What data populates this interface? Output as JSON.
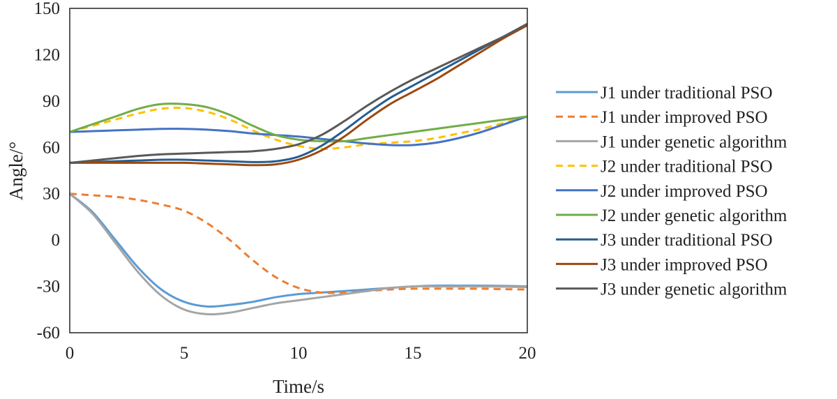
{
  "chart_data": {
    "type": "line",
    "title": "",
    "xlabel": "Time/s",
    "ylabel": "Angle/°",
    "xlim": [
      0,
      20
    ],
    "ylim": [
      -60,
      150
    ],
    "xticks": [
      0,
      5,
      10,
      15,
      20
    ],
    "yticks": [
      -60,
      -30,
      0,
      30,
      60,
      90,
      120,
      150
    ],
    "xtick_labels": [
      "0",
      "5",
      "10",
      "15",
      "20"
    ],
    "ytick_labels": [
      "-60",
      "-30",
      "0",
      "30",
      "60",
      "90",
      "120",
      "150"
    ],
    "grid": false,
    "legend_position": "right",
    "series": [
      {
        "name": "J1 under traditional PSO",
        "color": "#5b9bd5",
        "dash": "solid",
        "x": [
          0,
          1,
          2,
          3,
          4,
          5,
          6,
          7,
          8,
          9,
          10,
          11,
          12,
          13,
          14,
          15,
          16,
          17,
          18,
          19,
          20
        ],
        "y": [
          30,
          18,
          0,
          -18,
          -32,
          -40,
          -43,
          -42,
          -40,
          -37,
          -35,
          -34,
          -33,
          -32,
          -31,
          -30,
          -29.5,
          -29.5,
          -29.5,
          -29.7,
          -30
        ]
      },
      {
        "name": "J1 under improved PSO",
        "color": "#ed7d31",
        "dash": "dashed",
        "x": [
          0,
          1,
          2,
          3,
          4,
          5,
          6,
          7,
          8,
          9,
          10,
          11,
          12,
          13,
          14,
          15,
          16,
          17,
          18,
          19,
          20
        ],
        "y": [
          30,
          29,
          28,
          26,
          23,
          19,
          11,
          0,
          -13,
          -24,
          -31,
          -34,
          -34,
          -33,
          -32,
          -31.5,
          -31.5,
          -31.5,
          -31.5,
          -31.8,
          -32
        ]
      },
      {
        "name": "J1 under genetic algorithm",
        "color": "#a5a5a5",
        "dash": "solid",
        "x": [
          0,
          1,
          2,
          3,
          4,
          5,
          6,
          7,
          8,
          9,
          10,
          11,
          12,
          13,
          14,
          15,
          16,
          17,
          18,
          19,
          20
        ],
        "y": [
          30,
          17,
          -2,
          -21,
          -36,
          -45,
          -48,
          -47,
          -44,
          -41,
          -39,
          -37,
          -35,
          -33,
          -31,
          -30,
          -30,
          -30,
          -30,
          -30.2,
          -30.5
        ]
      },
      {
        "name": "J2 under traditional PSO",
        "color": "#ffc000",
        "dash": "dashed",
        "x": [
          0,
          1,
          2,
          3,
          4,
          5,
          6,
          7,
          8,
          9,
          10,
          11,
          12,
          13,
          14,
          15,
          16,
          17,
          18,
          19,
          20
        ],
        "y": [
          70,
          74,
          78,
          82,
          85,
          85.5,
          83,
          78,
          71,
          65,
          61,
          59,
          60,
          62,
          63,
          64,
          66,
          69,
          72,
          76,
          80
        ]
      },
      {
        "name": "J2 under improved PSO",
        "color": "#4472c4",
        "dash": "solid",
        "x": [
          0,
          1,
          2,
          3,
          4,
          5,
          6,
          7,
          8,
          9,
          10,
          11,
          12,
          13,
          14,
          15,
          16,
          17,
          18,
          19,
          20
        ],
        "y": [
          70,
          70.5,
          71,
          71.5,
          72,
          72,
          71.5,
          70.5,
          69,
          68,
          67,
          65.5,
          64,
          62.5,
          61.5,
          61.5,
          63,
          66,
          70,
          75,
          80
        ]
      },
      {
        "name": "J2 under genetic algorithm",
        "color": "#70ad47",
        "dash": "solid",
        "x": [
          0,
          1,
          2,
          3,
          4,
          5,
          6,
          7,
          8,
          9,
          10,
          11,
          12,
          13,
          14,
          15,
          16,
          17,
          18,
          19,
          20
        ],
        "y": [
          70,
          75,
          80,
          85,
          88,
          88,
          86,
          81,
          74,
          68,
          65,
          64,
          64,
          66,
          68,
          70,
          72,
          74,
          76,
          78,
          80
        ]
      },
      {
        "name": "J3 under traditional PSO",
        "color": "#255e91",
        "dash": "solid",
        "x": [
          0,
          1,
          2,
          3,
          4,
          5,
          6,
          7,
          8,
          9,
          10,
          11,
          12,
          13,
          14,
          15,
          16,
          17,
          18,
          19,
          20
        ],
        "y": [
          50,
          50.5,
          51,
          51.5,
          52,
          52,
          51.5,
          51,
          50.5,
          51,
          54,
          61,
          71,
          82,
          92,
          100,
          108,
          116,
          124,
          132,
          140
        ]
      },
      {
        "name": "J3 under improved PSO",
        "color": "#9e480e",
        "dash": "solid",
        "x": [
          0,
          1,
          2,
          3,
          4,
          5,
          6,
          7,
          8,
          9,
          10,
          11,
          12,
          13,
          14,
          15,
          16,
          17,
          18,
          19,
          20
        ],
        "y": [
          50,
          50,
          50,
          50,
          50,
          50,
          49.5,
          49,
          48.5,
          49,
          52,
          58,
          67,
          78,
          88,
          96,
          104,
          113,
          122,
          131,
          139
        ]
      },
      {
        "name": "J3 under genetic algorithm",
        "color": "#595959",
        "dash": "solid",
        "x": [
          0,
          1,
          2,
          3,
          4,
          5,
          6,
          7,
          8,
          9,
          10,
          11,
          12,
          13,
          14,
          15,
          16,
          17,
          18,
          19,
          20
        ],
        "y": [
          50,
          51.5,
          53,
          54.5,
          55.5,
          56,
          56.5,
          57,
          57.5,
          59,
          62,
          68,
          77,
          87,
          96,
          104,
          111,
          118,
          125,
          132,
          140
        ]
      }
    ]
  }
}
